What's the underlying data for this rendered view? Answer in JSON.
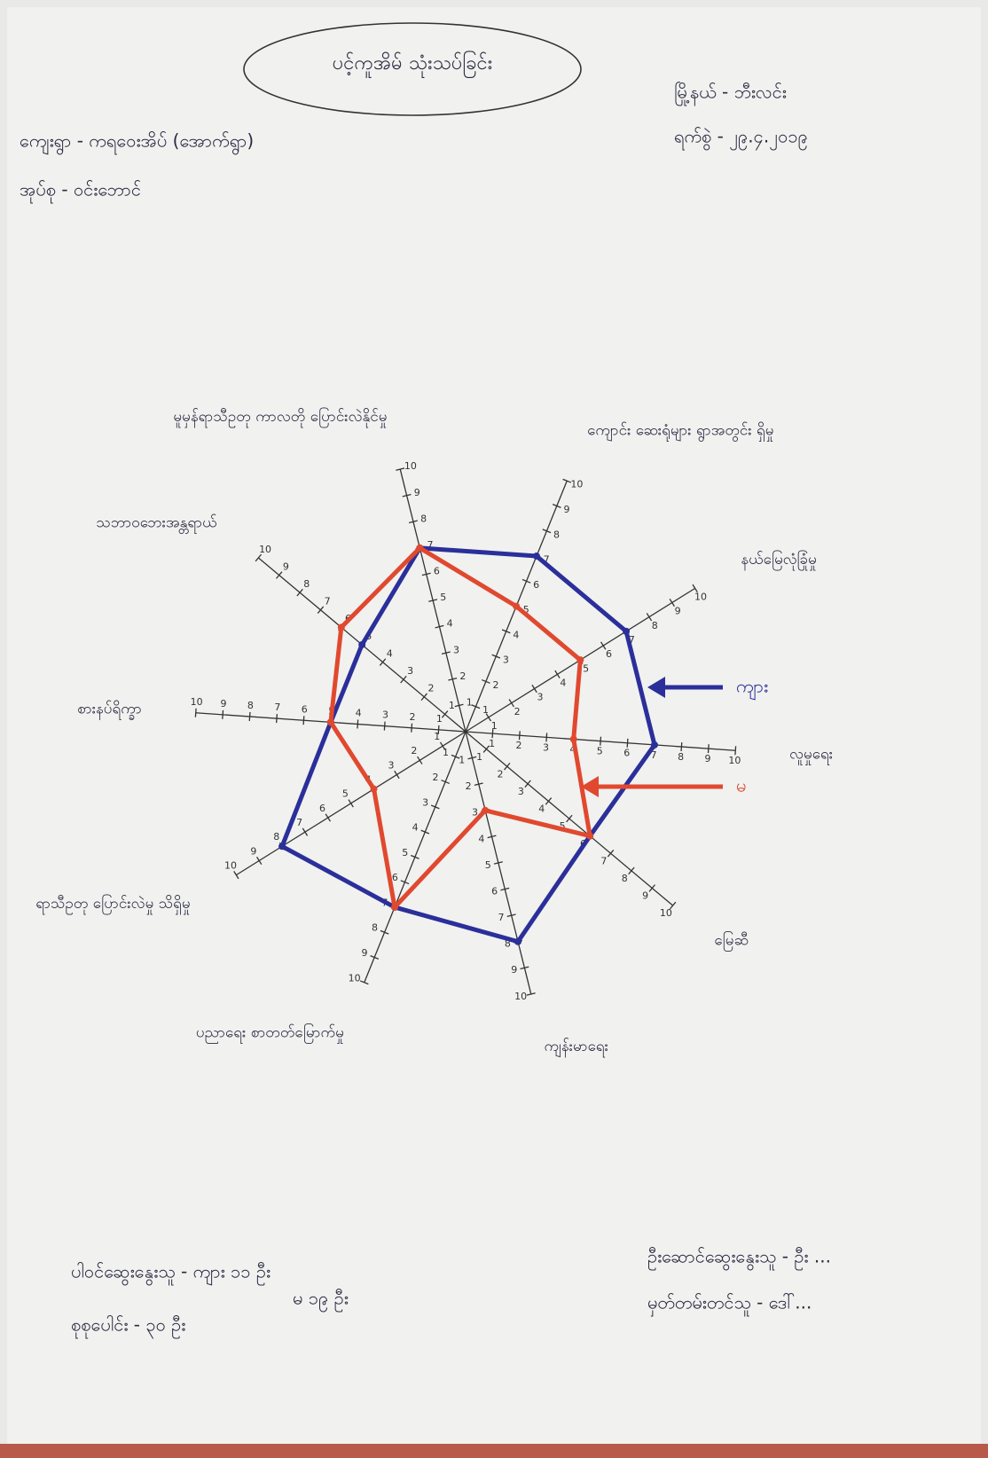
{
  "chart_data": {
    "type": "radar",
    "title": "ပင့်ကူအိမ် သုံးသပ်ခြင်း",
    "info_left": [
      "ကျေးရွာ - ကရဝေးအိပ် (အောက်ရွာ)",
      "အုပ်စု - ဝင်းဘောင်"
    ],
    "info_right": [
      "မြို့နယ် - ဘီးလင်း",
      "ရက်စွဲ - ၂၉.၄.၂၀၁၉"
    ],
    "footer_left": [
      "ပါဝင်ဆွေးနွေးသူ - ကျား ၁၁ ဦး",
      "မ ၁၉ ဦး",
      "စုစုပေါင်း - ၃၀ ဦး"
    ],
    "footer_right": [
      "ဦးဆောင်ဆွေးနွေးသူ - ဦး ...",
      "မှတ်တမ်းတင်သူ - ဒေါ်..."
    ],
    "categories": [
      "မူမှန်ရာသီဥတု ကာလတို ပြောင်းလဲနိုင်မှု",
      "ကျောင်း ဆေးရုံများ ရွာအတွင်း ရှိမှု",
      "နယ်မြေလုံခြုံမှု",
      "လူမှုရေး",
      "မြေဆီ",
      "ကျန်းမာရေး",
      "ပညာရေး စာတတ်မြောက်မှု",
      "ရာသီဥတု ပြောင်းလဲမှု သိရှိမှု",
      "စားနပ်ရိက္ခာ",
      "သဘာဝဘေးအန္တရာယ်"
    ],
    "series": [
      {
        "name": "ကျား",
        "color": "#2b2f9a",
        "values": [
          7,
          7,
          7,
          7,
          6,
          8,
          7,
          8,
          5,
          5
        ]
      },
      {
        "name": "မ",
        "color": "#e0492f",
        "values": [
          7,
          5,
          5,
          4,
          6,
          3,
          7,
          4,
          5,
          6
        ]
      }
    ],
    "rlim": [
      0,
      10
    ],
    "rticks": [
      1,
      2,
      3,
      4,
      5,
      6,
      7,
      8,
      9,
      10
    ]
  }
}
